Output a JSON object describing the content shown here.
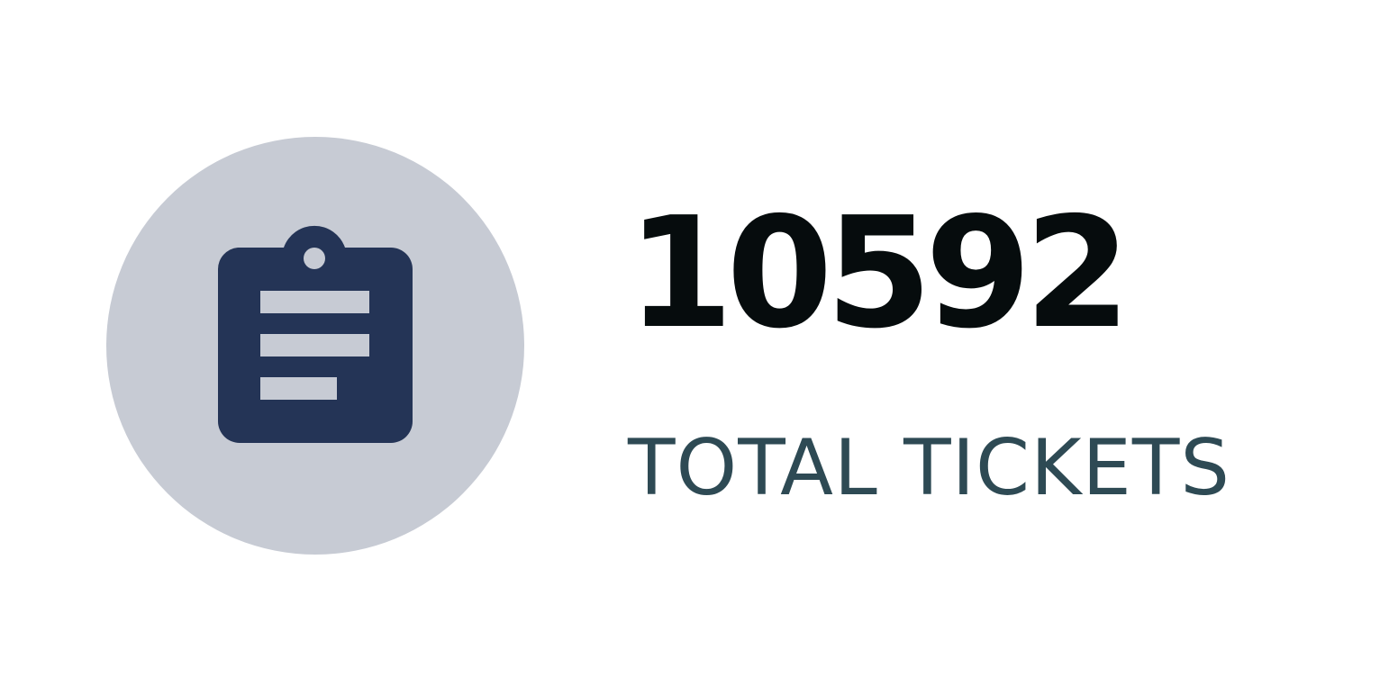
{
  "stat": {
    "value": "10592",
    "label": "TOTAL TICKETS",
    "icon": "clipboard-icon"
  },
  "colors": {
    "circle_background": "#c7cbd4",
    "icon": "#243456",
    "value_text": "#060c0d",
    "label_text": "#2e4a54"
  }
}
